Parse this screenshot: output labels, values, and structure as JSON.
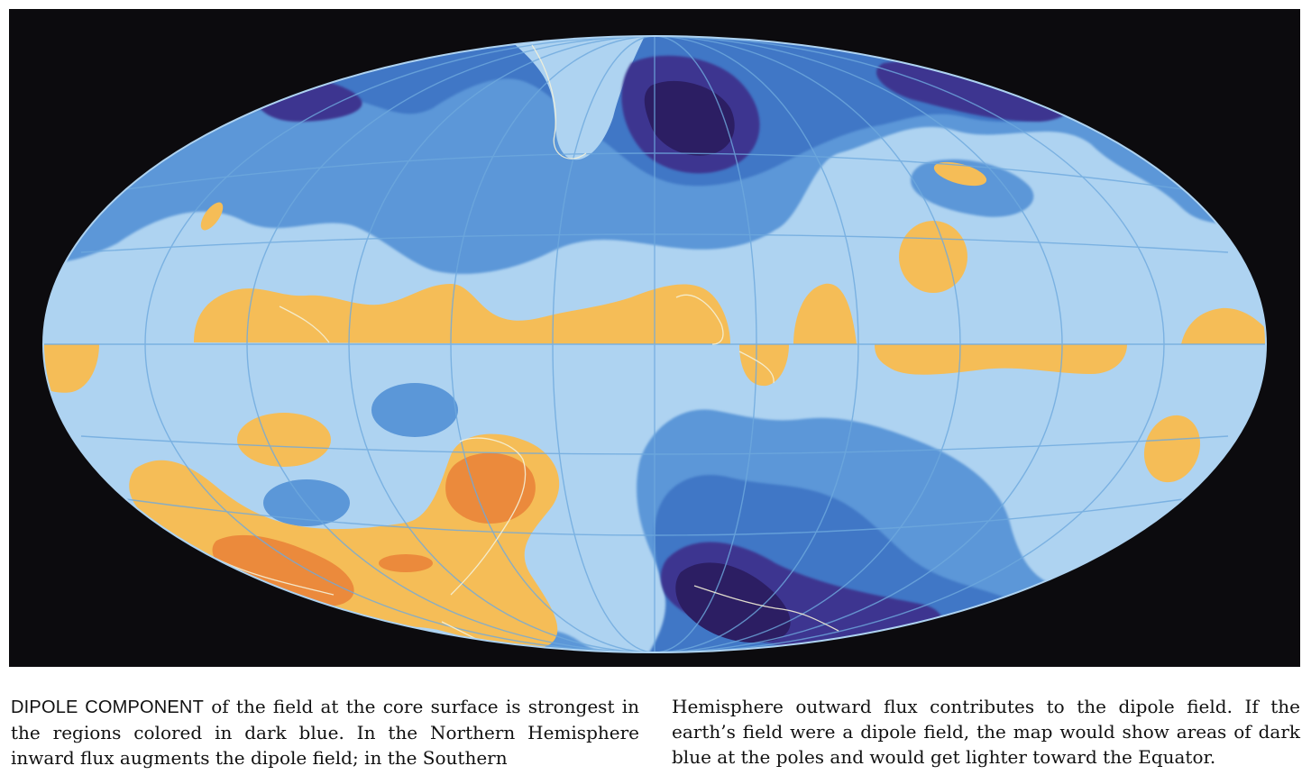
{
  "figure": {
    "colors": {
      "background": "#0c0b0e",
      "weak_field": "#aed3f1",
      "mid_blue": "#5b97d8",
      "strong_blue": "#3f77c6",
      "darkest_blue": "#2c1e63",
      "deep_blue": "#3c3590",
      "yellow_flux": "#f5bd57",
      "orange_flux": "#eb8a3c",
      "coastlines": "#f4f1d8",
      "graticule": "#6ea9de"
    },
    "projection": "Hammer-Aitoff equal-area world map",
    "legend_note": "dark blue = strongest dipole component"
  },
  "caption": {
    "lead": "DIPOLE COMPONENT",
    "col1_rest": " of the field at the core surface is strongest in the regions colored in dark blue. In the Northern Hemisphere inward flux augments the dipole field; in the Southern",
    "col2": "Hemisphere outward flux contributes to the dipole field. If the earth’s field were a dipole field, the map would show areas of dark blue at the poles and would get lighter toward the Equator."
  }
}
